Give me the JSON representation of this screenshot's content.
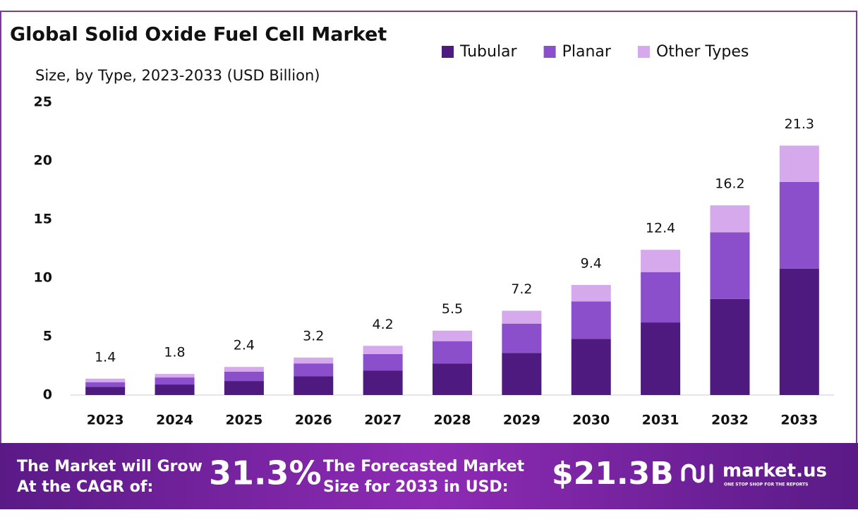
{
  "chart_data": {
    "type": "stacked_bar",
    "title": "Global Solid Oxide Fuel Cell Market",
    "subtitle": "Size, by Type, 2023-2033 (USD Billion)",
    "categories": [
      "2023",
      "2024",
      "2025",
      "2026",
      "2027",
      "2028",
      "2029",
      "2030",
      "2031",
      "2032",
      "2033"
    ],
    "series": [
      {
        "name": "Tubular",
        "color": "#4e1a7f",
        "values": [
          0.7,
          0.9,
          1.2,
          1.6,
          2.1,
          2.7,
          3.6,
          4.8,
          6.2,
          8.2,
          10.8
        ]
      },
      {
        "name": "Planar",
        "color": "#8b4fcb",
        "values": [
          0.4,
          0.6,
          0.8,
          1.1,
          1.4,
          1.9,
          2.5,
          3.2,
          4.3,
          5.7,
          7.4
        ]
      },
      {
        "name": "Other Types",
        "color": "#d6a8ec",
        "values": [
          0.3,
          0.3,
          0.4,
          0.5,
          0.7,
          0.9,
          1.1,
          1.4,
          1.9,
          2.3,
          3.1
        ]
      }
    ],
    "totals": [
      1.4,
      1.8,
      2.4,
      3.2,
      4.2,
      5.5,
      7.2,
      9.4,
      12.4,
      16.2,
      21.3
    ],
    "ylim": [
      0,
      25
    ],
    "yticks": [
      0,
      5,
      10,
      15,
      20,
      25
    ],
    "grid": false,
    "legend": "top-right"
  },
  "footer": {
    "cagr_line1": "The Market will Grow",
    "cagr_line2": "At the CAGR of:",
    "cagr_value": "31.3%",
    "forecast_line1": "The Forecasted Market",
    "forecast_line2": "Size for 2033 in USD:",
    "forecast_value": "$21.3B",
    "brand": "market.us",
    "tagline": "ONE STOP SHOP FOR THE REPORTS"
  }
}
